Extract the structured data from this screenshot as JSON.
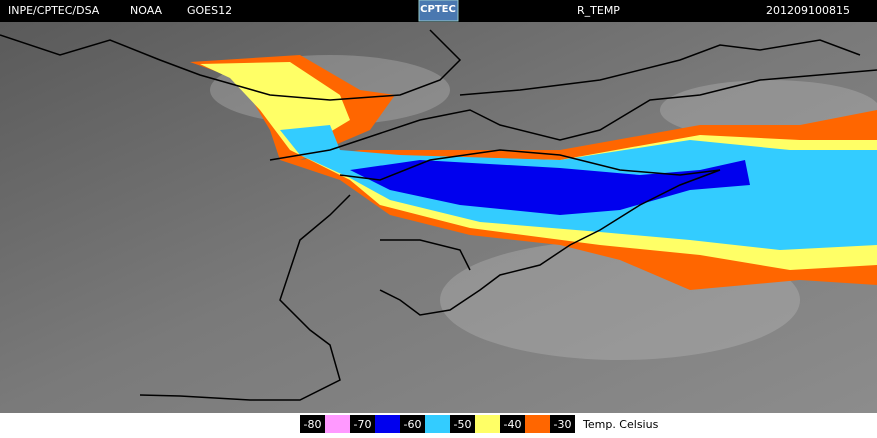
{
  "header": {
    "source": "INPE/CPTEC/DSA",
    "agency": "NOAA",
    "satellite": "GOES12",
    "logo": "CPTEC",
    "product": "R_TEMP",
    "timestamp": "201209100815"
  },
  "legend": {
    "items": [
      {
        "label": "-80",
        "color": "#ff99ff"
      },
      {
        "label": "-70",
        "color": "#0000ee"
      },
      {
        "label": "-60",
        "color": "#33ccff"
      },
      {
        "label": "-50",
        "color": "#ffff66"
      },
      {
        "label": "-40",
        "color": "#ff6600"
      },
      {
        "label": "-30"
      }
    ],
    "unit": "Temp. Celsius"
  }
}
